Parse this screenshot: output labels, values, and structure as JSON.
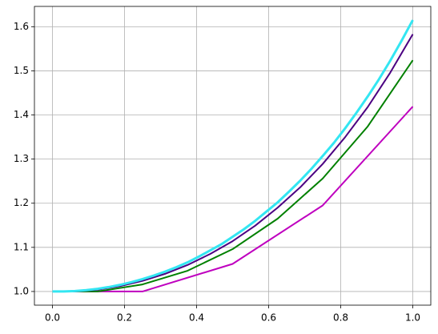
{
  "chart_data": {
    "type": "line",
    "xlim": [
      -0.05,
      1.05
    ],
    "ylim": [
      0.969,
      1.646
    ],
    "xticks": [
      {
        "value": 0,
        "label": "0.0"
      },
      0.2,
      0.4,
      0.6,
      0.8,
      {
        "value": 1,
        "label": "1.0"
      }
    ],
    "yticks": [
      {
        "value": 1,
        "label": "1.0"
      },
      1.1,
      1.2,
      1.3,
      1.4,
      1.5,
      1.6
    ],
    "grid": true,
    "series": [
      {
        "color": "#bf00bf",
        "width": 2,
        "x": [
          0,
          0.25,
          0.5,
          0.75,
          1
        ],
        "values": [
          1,
          1,
          1.0625,
          1.195,
          1.419
        ]
      },
      {
        "color": "#008000",
        "width": 2,
        "x": [
          0,
          0.125,
          0.25,
          0.375,
          0.5,
          0.625,
          0.75,
          0.875,
          1
        ],
        "values": [
          1,
          1,
          1.016,
          1.047,
          1.096,
          1.165,
          1.256,
          1.374,
          1.524
        ]
      },
      {
        "color": "#4b0082",
        "width": 2,
        "x": [
          0,
          0.0625,
          0.125,
          0.1875,
          0.25,
          0.3125,
          0.375,
          0.4375,
          0.5,
          0.5625,
          0.625,
          0.6875,
          0.75,
          0.8125,
          0.875,
          0.9375,
          1
        ],
        "values": [
          1,
          1,
          1.004,
          1.012,
          1.024,
          1.04,
          1.06,
          1.085,
          1.114,
          1.149,
          1.19,
          1.236,
          1.289,
          1.35,
          1.418,
          1.496,
          1.583
        ]
      },
      {
        "color": "#33e6f2",
        "width": 3,
        "x": [
          0,
          0.03125,
          0.0625,
          0.09375,
          0.125,
          0.15625,
          0.1875,
          0.21875,
          0.25,
          0.28125,
          0.3125,
          0.34375,
          0.375,
          0.40625,
          0.4375,
          0.46875,
          0.5,
          0.53125,
          0.5625,
          0.59375,
          0.625,
          0.65625,
          0.6875,
          0.71875,
          0.75,
          0.78125,
          0.8125,
          0.84375,
          0.875,
          0.90625,
          0.9375,
          0.96875,
          1
        ],
        "values": [
          1,
          1,
          1.001,
          1.003,
          1.006,
          1.01,
          1.015,
          1.021,
          1.028,
          1.036,
          1.045,
          1.055,
          1.066,
          1.079,
          1.093,
          1.107,
          1.124,
          1.141,
          1.16,
          1.181,
          1.202,
          1.226,
          1.251,
          1.278,
          1.307,
          1.337,
          1.37,
          1.405,
          1.442,
          1.481,
          1.523,
          1.568,
          1.615
        ]
      }
    ]
  }
}
